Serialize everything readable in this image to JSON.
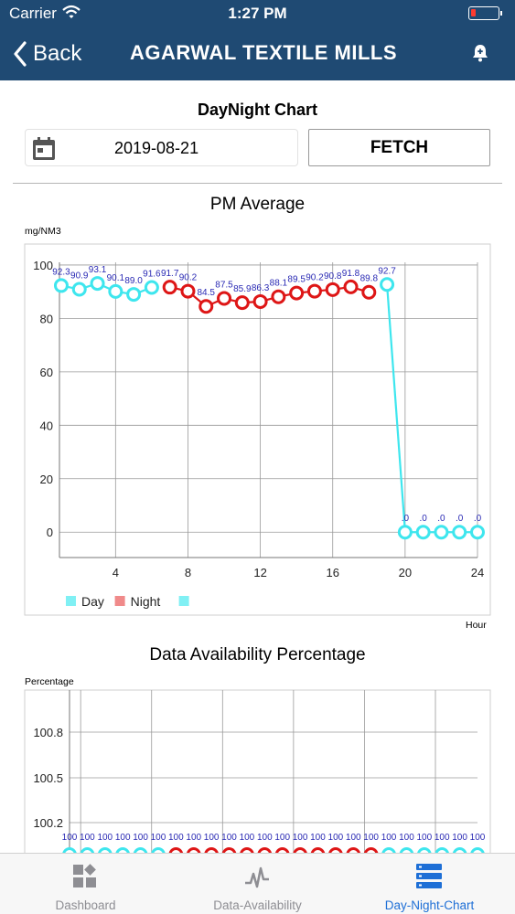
{
  "status_bar": {
    "carrier": "Carrier",
    "time": "1:27 PM"
  },
  "nav": {
    "back_label": "Back",
    "title": "AGARWAL TEXTILE MILLS"
  },
  "header": {
    "heading": "DayNight Chart",
    "date_value": "2019-08-21",
    "fetch_label": "FETCH"
  },
  "colors": {
    "nav_bg": "#1f4a73",
    "day": "#3ee6ee",
    "night": "#de1616",
    "label": "#2a2ab4",
    "tab_active": "#1e6fd6"
  },
  "chart_data": [
    {
      "type": "line",
      "title": "PM Average",
      "ylabel": "mg/NM3",
      "xlabel": "Hour",
      "x": [
        1,
        2,
        3,
        4,
        5,
        6,
        7,
        8,
        9,
        10,
        11,
        12,
        13,
        14,
        15,
        16,
        17,
        18,
        19,
        20,
        21,
        22,
        23,
        24
      ],
      "values": [
        92.3,
        90.9,
        93.1,
        90.1,
        89.0,
        91.6,
        91.7,
        90.2,
        84.5,
        87.5,
        85.9,
        86.3,
        88.1,
        89.5,
        90.2,
        90.8,
        91.8,
        89.8,
        92.7,
        0,
        0,
        0,
        0,
        0
      ],
      "point_labels": [
        "92.3",
        "90.9",
        "93.1",
        "90.1",
        "89.0",
        "91.6",
        "91.7",
        "90.2",
        "84.5",
        "87.5",
        "85.9",
        "86.3",
        "88.1",
        "89.5",
        "90.2",
        "90.8",
        "91.8",
        "89.8",
        "92.7",
        ".0",
        ".0",
        ".0",
        ".0",
        ".0"
      ],
      "period": [
        "day",
        "day",
        "day",
        "day",
        "day",
        "day",
        "night",
        "night",
        "night",
        "night",
        "night",
        "night",
        "night",
        "night",
        "night",
        "night",
        "night",
        "night",
        "day",
        "day",
        "day",
        "day",
        "day",
        "day"
      ],
      "xlim": [
        0.9,
        24
      ],
      "ylim": [
        -9.5,
        101
      ],
      "yticks": [
        100,
        80,
        60,
        40,
        20,
        0
      ],
      "xticks": [
        4,
        8,
        12,
        16,
        20,
        24
      ],
      "legend": [
        {
          "name": "Day",
          "color": "#80f0f4"
        },
        {
          "name": "Night",
          "color": "#f08a8a"
        },
        {
          "name": "",
          "color": "#80f0f4"
        }
      ],
      "legend_position": "bottom-left",
      "grid": true
    },
    {
      "type": "line",
      "title": "Data Availability Percentage",
      "ylabel": "Percentage",
      "x": [
        1,
        2,
        3,
        4,
        5,
        6,
        7,
        8,
        9,
        10,
        11,
        12,
        13,
        14,
        15,
        16,
        17,
        18,
        19,
        20,
        21,
        22,
        23,
        24
      ],
      "values": [
        100,
        100,
        100,
        100,
        100,
        100,
        100,
        100,
        100,
        100,
        100,
        100,
        100,
        100,
        100,
        100,
        100,
        100,
        100,
        100,
        100,
        100,
        100,
        100
      ],
      "point_labels": [
        "100",
        "100",
        "100",
        "100",
        "100",
        "100",
        "100",
        "100",
        "100",
        "100",
        "100",
        "100",
        "100",
        "100",
        "100",
        "100",
        "100",
        "100",
        "100",
        "100",
        "100",
        "100",
        "100",
        "100"
      ],
      "period": [
        "day",
        "day",
        "day",
        "day",
        "day",
        "day",
        "night",
        "night",
        "night",
        "night",
        "night",
        "night",
        "night",
        "night",
        "night",
        "night",
        "night",
        "night",
        "day",
        "day",
        "day",
        "day",
        "day",
        "day"
      ],
      "xlim": [
        1,
        24
      ],
      "yticks": [
        100.8,
        100.5,
        100.2
      ],
      "yticklabels": [
        "100.8",
        "100.5",
        "100.2"
      ],
      "grid": true
    }
  ],
  "tabs": [
    {
      "label": "Dashboard",
      "icon": "dashboard-icon"
    },
    {
      "label": "Data-Availability",
      "icon": "activity-icon"
    },
    {
      "label": "Day-Night-Chart",
      "icon": "server-list-icon",
      "active": true
    }
  ]
}
